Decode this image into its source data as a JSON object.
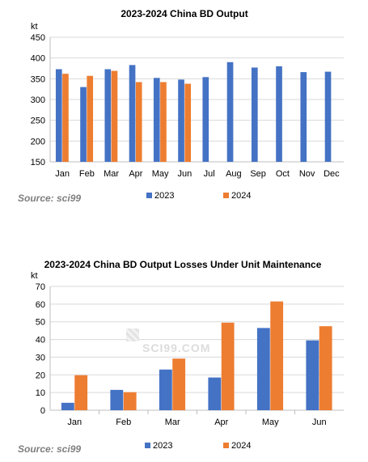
{
  "source_text": "Source: sci99",
  "watermark": {
    "text": "SCI99.COM"
  },
  "chart_data": [
    {
      "type": "bar",
      "title": "2023-2024  China BD Output",
      "ylabel": "kt",
      "xlabel": "",
      "ylim": [
        150,
        450
      ],
      "ytick_step": 50,
      "categories": [
        "Jan",
        "Feb",
        "Mar",
        "Apr",
        "May",
        "Jun",
        "Jul",
        "Aug",
        "Sep",
        "Oct",
        "Nov",
        "Dec"
      ],
      "series": [
        {
          "name": "2023",
          "color": "#4472C4",
          "values": [
            373,
            330,
            373,
            383,
            352,
            348,
            354,
            390,
            377,
            380,
            366,
            367
          ]
        },
        {
          "name": "2024",
          "color": "#ED7D31",
          "values": [
            362,
            357,
            369,
            342,
            342,
            338,
            null,
            null,
            null,
            null,
            null,
            null
          ]
        }
      ],
      "grid": true,
      "legend": "bottom"
    },
    {
      "type": "bar",
      "title": "2023-2024  China BD Output Losses Under Unit Maintenance",
      "ylabel": "kt",
      "xlabel": "",
      "ylim": [
        0,
        70
      ],
      "ytick_step": 10,
      "categories": [
        "Jan",
        "Feb",
        "Mar",
        "Apr",
        "May",
        "Jun"
      ],
      "series": [
        {
          "name": "2023",
          "color": "#4472C4",
          "values": [
            4.2,
            11.5,
            23,
            18.5,
            46.5,
            39.5
          ]
        },
        {
          "name": "2024",
          "color": "#ED7D31",
          "values": [
            19.8,
            10.2,
            29.2,
            49.5,
            61.5,
            47.5
          ]
        }
      ],
      "grid": true,
      "legend": "bottom"
    }
  ]
}
